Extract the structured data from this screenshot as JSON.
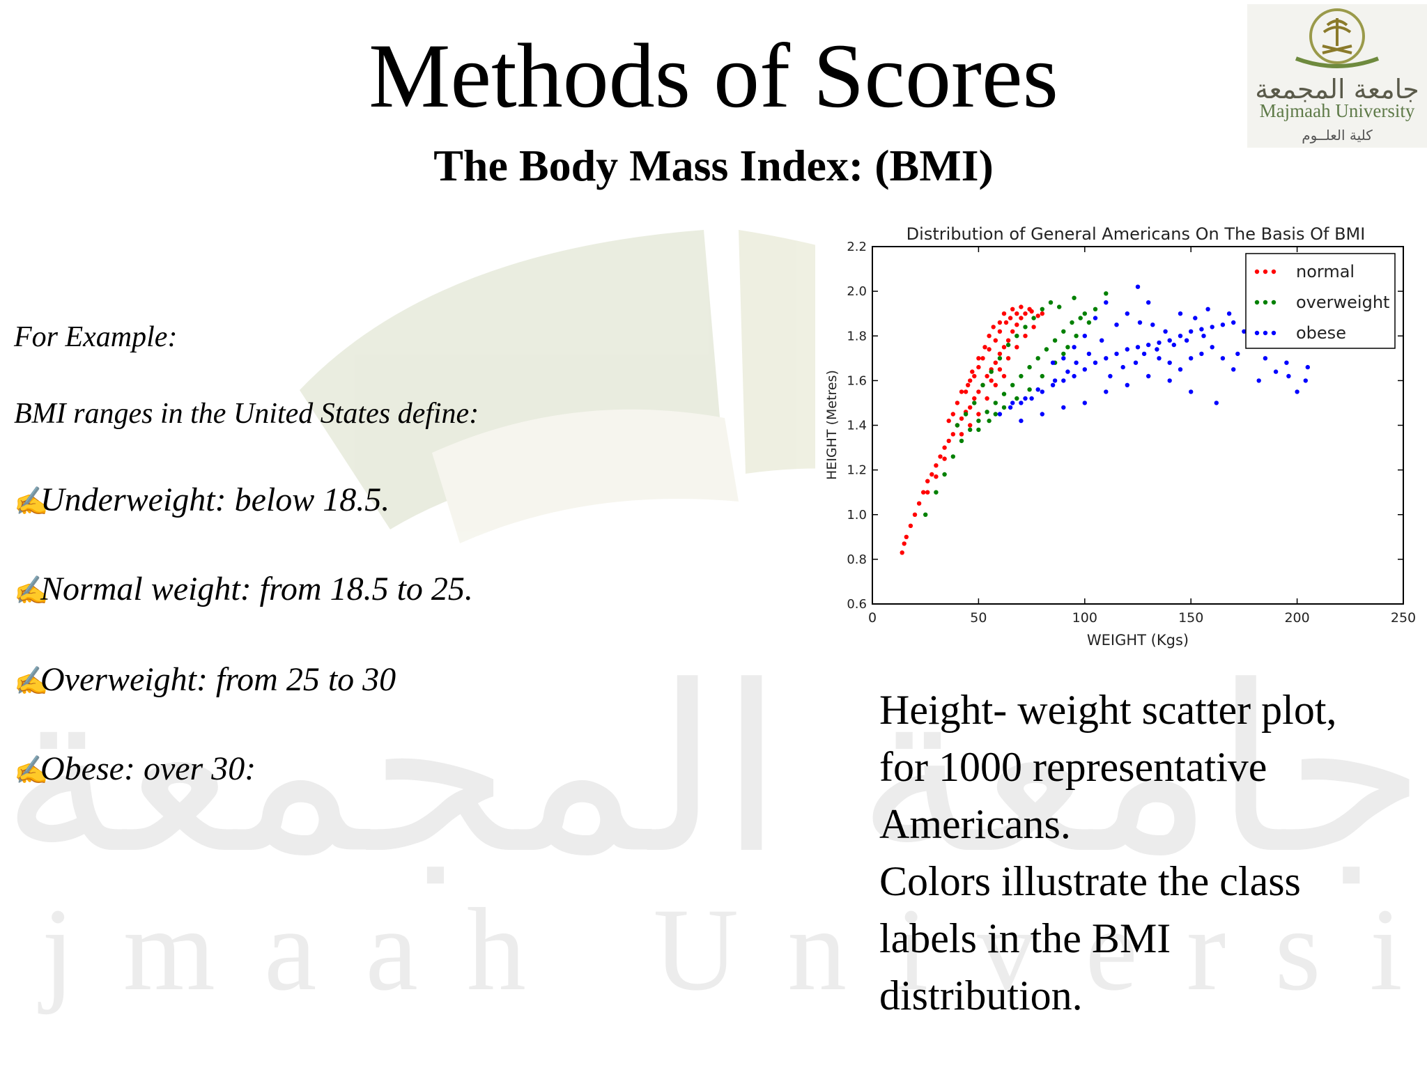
{
  "slide": {
    "title": "Methods of Scores",
    "subtitle": "The Body Mass Index: (BMI)"
  },
  "logo": {
    "arabic_name": "جامعة المجمعة",
    "english_name": "Majmaah University",
    "college": "كلية العلــوم"
  },
  "watermark": {
    "arabic": "جامعة المجمعة",
    "english": "Majmaah University"
  },
  "left_text": {
    "example_label": "For Example:",
    "intro": "BMI ranges in the United States define:",
    "items": [
      "Underweight: below 18.5.",
      "Normal weight: from 18.5 to 25.",
      "Overweight: from 25 to 30",
      "Obese: over 30:"
    ],
    "bullet_icon": "writing-hand-icon"
  },
  "caption": {
    "lines": [
      "Height- weight scatter plot,",
      "for 1000 representative",
      "Americans.",
      "Colors illustrate the class",
      "labels in the BMI",
      "distribution."
    ]
  },
  "chart_data": {
    "type": "scatter",
    "title": "Distribution of General Americans On The Basis Of BMI",
    "xlabel": "WEIGHT (Kgs)",
    "ylabel": "HEIGHT (Metres)",
    "xlim": [
      0,
      250
    ],
    "ylim": [
      0.6,
      2.2
    ],
    "xticks": [
      "0",
      "50",
      "100",
      "150",
      "200",
      "250"
    ],
    "yticks": [
      "0.6",
      "0.8",
      "1.0",
      "1.2",
      "1.4",
      "1.6",
      "1.8",
      "2.0",
      "2.2"
    ],
    "legend_position": "top-right",
    "grid": false,
    "series": [
      {
        "name": "normal",
        "color": "#ff0000",
        "points": [
          [
            14,
            0.83
          ],
          [
            15,
            0.87
          ],
          [
            16,
            0.9
          ],
          [
            18,
            0.95
          ],
          [
            20,
            1.0
          ],
          [
            22,
            1.05
          ],
          [
            24,
            1.1
          ],
          [
            26,
            1.15
          ],
          [
            28,
            1.18
          ],
          [
            30,
            1.22
          ],
          [
            32,
            1.26
          ],
          [
            34,
            1.3
          ],
          [
            36,
            1.33
          ],
          [
            38,
            1.36
          ],
          [
            40,
            1.4
          ],
          [
            42,
            1.43
          ],
          [
            44,
            1.46
          ],
          [
            46,
            1.48
          ],
          [
            48,
            1.52
          ],
          [
            50,
            1.55
          ],
          [
            52,
            1.58
          ],
          [
            54,
            1.62
          ],
          [
            56,
            1.65
          ],
          [
            58,
            1.68
          ],
          [
            60,
            1.72
          ],
          [
            62,
            1.75
          ],
          [
            64,
            1.78
          ],
          [
            66,
            1.82
          ],
          [
            68,
            1.85
          ],
          [
            70,
            1.88
          ],
          [
            72,
            1.9
          ],
          [
            74,
            1.92
          ],
          [
            40,
            1.5
          ],
          [
            42,
            1.55
          ],
          [
            45,
            1.58
          ],
          [
            48,
            1.62
          ],
          [
            50,
            1.66
          ],
          [
            52,
            1.7
          ],
          [
            55,
            1.74
          ],
          [
            58,
            1.78
          ],
          [
            60,
            1.82
          ],
          [
            63,
            1.86
          ],
          [
            65,
            1.88
          ],
          [
            68,
            1.9
          ],
          [
            46,
            1.6
          ],
          [
            50,
            1.7
          ],
          [
            55,
            1.8
          ],
          [
            60,
            1.86
          ],
          [
            36,
            1.42
          ],
          [
            38,
            1.45
          ],
          [
            44,
            1.55
          ],
          [
            47,
            1.64
          ],
          [
            53,
            1.75
          ],
          [
            57,
            1.84
          ],
          [
            62,
            1.9
          ],
          [
            66,
            1.92
          ],
          [
            70,
            1.93
          ],
          [
            75,
            1.91
          ],
          [
            78,
            1.89
          ],
          [
            80,
            1.9
          ],
          [
            56,
            1.6
          ],
          [
            60,
            1.65
          ],
          [
            64,
            1.7
          ],
          [
            68,
            1.75
          ],
          [
            72,
            1.8
          ],
          [
            76,
            1.84
          ],
          [
            54,
            1.52
          ],
          [
            58,
            1.58
          ],
          [
            62,
            1.62
          ],
          [
            50,
            1.45
          ],
          [
            46,
            1.4
          ],
          [
            42,
            1.36
          ],
          [
            34,
            1.25
          ],
          [
            30,
            1.17
          ],
          [
            26,
            1.1
          ]
        ]
      },
      {
        "name": "overweight",
        "color": "#008000",
        "points": [
          [
            25,
            1.0
          ],
          [
            30,
            1.1
          ],
          [
            34,
            1.18
          ],
          [
            38,
            1.26
          ],
          [
            42,
            1.33
          ],
          [
            46,
            1.38
          ],
          [
            50,
            1.42
          ],
          [
            54,
            1.46
          ],
          [
            58,
            1.5
          ],
          [
            62,
            1.54
          ],
          [
            66,
            1.58
          ],
          [
            70,
            1.62
          ],
          [
            74,
            1.66
          ],
          [
            78,
            1.7
          ],
          [
            82,
            1.74
          ],
          [
            86,
            1.78
          ],
          [
            90,
            1.82
          ],
          [
            94,
            1.86
          ],
          [
            98,
            1.88
          ],
          [
            100,
            1.9
          ],
          [
            88,
            1.93
          ],
          [
            84,
            1.95
          ],
          [
            80,
            1.92
          ],
          [
            76,
            1.88
          ],
          [
            72,
            1.84
          ],
          [
            68,
            1.8
          ],
          [
            64,
            1.76
          ],
          [
            60,
            1.7
          ],
          [
            56,
            1.64
          ],
          [
            52,
            1.58
          ],
          [
            48,
            1.5
          ],
          [
            44,
            1.45
          ],
          [
            40,
            1.4
          ],
          [
            105,
            1.92
          ],
          [
            95,
            1.97
          ],
          [
            110,
            1.99
          ],
          [
            92,
            1.75
          ],
          [
            86,
            1.68
          ],
          [
            80,
            1.62
          ],
          [
            74,
            1.56
          ],
          [
            68,
            1.52
          ],
          [
            62,
            1.48
          ],
          [
            58,
            1.45
          ],
          [
            55,
            1.42
          ],
          [
            50,
            1.38
          ],
          [
            96,
            1.8
          ],
          [
            102,
            1.86
          ],
          [
            90,
            1.72
          ]
        ]
      },
      {
        "name": "obese",
        "color": "#0000ff",
        "points": [
          [
            60,
            1.45
          ],
          [
            65,
            1.48
          ],
          [
            70,
            1.5
          ],
          [
            75,
            1.52
          ],
          [
            80,
            1.55
          ],
          [
            85,
            1.58
          ],
          [
            90,
            1.6
          ],
          [
            95,
            1.62
          ],
          [
            100,
            1.65
          ],
          [
            105,
            1.68
          ],
          [
            110,
            1.7
          ],
          [
            115,
            1.72
          ],
          [
            120,
            1.74
          ],
          [
            125,
            1.75
          ],
          [
            130,
            1.76
          ],
          [
            135,
            1.77
          ],
          [
            140,
            1.78
          ],
          [
            145,
            1.8
          ],
          [
            150,
            1.82
          ],
          [
            155,
            1.83
          ],
          [
            160,
            1.84
          ],
          [
            165,
            1.85
          ],
          [
            170,
            1.86
          ],
          [
            175,
            1.82
          ],
          [
            180,
            1.78
          ],
          [
            185,
            1.7
          ],
          [
            190,
            1.64
          ],
          [
            195,
            1.68
          ],
          [
            200,
            1.55
          ],
          [
            205,
            1.66
          ],
          [
            162,
            1.5
          ],
          [
            150,
            1.55
          ],
          [
            140,
            1.6
          ],
          [
            130,
            1.62
          ],
          [
            120,
            1.58
          ],
          [
            110,
            1.55
          ],
          [
            100,
            1.5
          ],
          [
            90,
            1.48
          ],
          [
            80,
            1.45
          ],
          [
            70,
            1.42
          ],
          [
            115,
            1.85
          ],
          [
            120,
            1.9
          ],
          [
            125,
            2.02
          ],
          [
            130,
            1.95
          ],
          [
            110,
            1.95
          ],
          [
            105,
            1.88
          ],
          [
            100,
            1.8
          ],
          [
            95,
            1.75
          ],
          [
            90,
            1.7
          ],
          [
            85,
            1.68
          ],
          [
            135,
            1.7
          ],
          [
            140,
            1.68
          ],
          [
            145,
            1.65
          ],
          [
            150,
            1.7
          ],
          [
            155,
            1.72
          ],
          [
            160,
            1.75
          ],
          [
            165,
            1.7
          ],
          [
            170,
            1.65
          ],
          [
            145,
            1.9
          ],
          [
            152,
            1.88
          ],
          [
            158,
            1.92
          ],
          [
            168,
            1.9
          ],
          [
            178,
            1.88
          ],
          [
            188,
            1.85
          ],
          [
            112,
            1.62
          ],
          [
            118,
            1.66
          ],
          [
            124,
            1.68
          ],
          [
            128,
            1.72
          ],
          [
            134,
            1.74
          ],
          [
            142,
            1.76
          ],
          [
            148,
            1.78
          ],
          [
            108,
            1.78
          ],
          [
            102,
            1.72
          ],
          [
            96,
            1.68
          ],
          [
            92,
            1.64
          ],
          [
            86,
            1.6
          ],
          [
            78,
            1.56
          ],
          [
            72,
            1.52
          ],
          [
            66,
            1.5
          ],
          [
            138,
            1.82
          ],
          [
            132,
            1.85
          ],
          [
            126,
            1.86
          ],
          [
            156,
            1.8
          ],
          [
            172,
            1.72
          ],
          [
            182,
            1.6
          ],
          [
            196,
            1.62
          ],
          [
            204,
            1.6
          ]
        ]
      }
    ]
  }
}
